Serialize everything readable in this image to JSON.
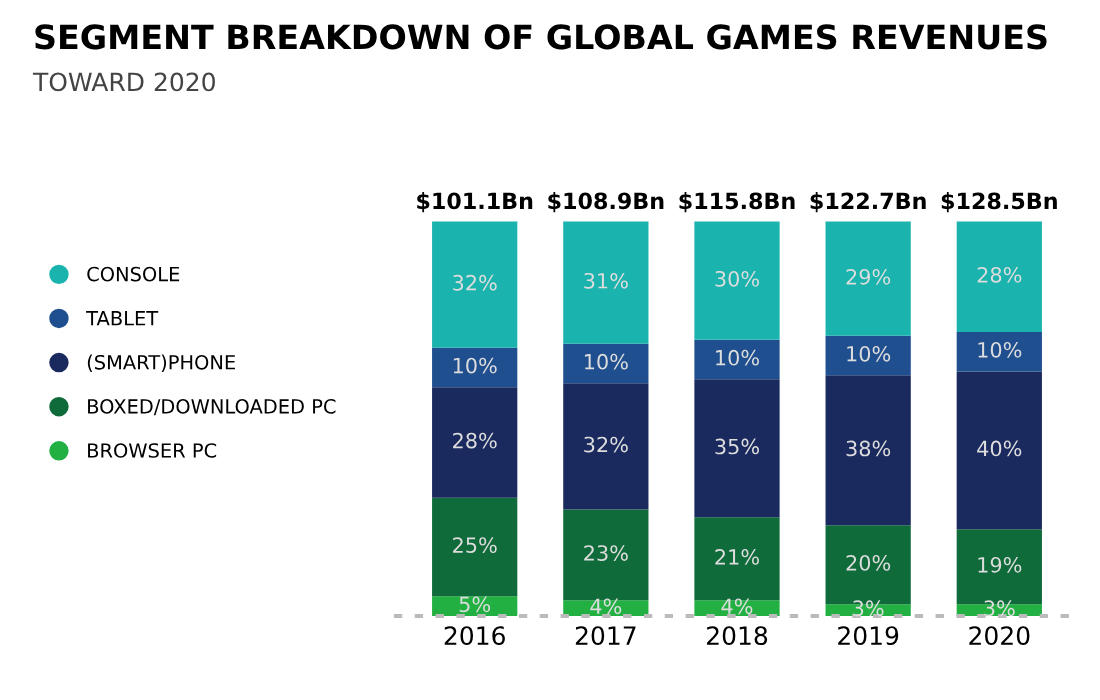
{
  "chart_data": {
    "type": "bar",
    "title": "SEGMENT BREAKDOWN OF GLOBAL GAMES REVENUES",
    "subtitle": "TOWARD 2020",
    "categories": [
      "2016",
      "2017",
      "2018",
      "2019",
      "2020"
    ],
    "stacked": true,
    "legend": "left",
    "grid": false,
    "tick_labels": "x",
    "series": [
      {
        "name": "BROWSER PC",
        "color": "#22b043",
        "values": [
          5,
          4,
          4,
          3,
          3
        ],
        "value_labels": [
          "5%",
          "4%",
          "4%",
          "3%",
          "3%"
        ]
      },
      {
        "name": "BOXED/DOWNLOADED PC",
        "color": "#0f6b3a",
        "values": [
          25,
          23,
          21,
          20,
          19
        ],
        "value_labels": [
          "25%",
          "23%",
          "21%",
          "20%",
          "19%"
        ]
      },
      {
        "name": "(SMART)PHONE",
        "color": "#1b2a5e",
        "values": [
          28,
          32,
          35,
          38,
          40
        ],
        "value_labels": [
          "28%",
          "32%",
          "35%",
          "38%",
          "40%"
        ]
      },
      {
        "name": "TABLET",
        "color": "#1f4f8f",
        "values": [
          10,
          10,
          10,
          10,
          10
        ],
        "value_labels": [
          "10%",
          "10%",
          "10%",
          "10%",
          "10%"
        ]
      },
      {
        "name": "CONSOLE",
        "color": "#1ab3ad",
        "values": [
          32,
          31,
          30,
          29,
          28
        ],
        "value_labels": [
          "32%",
          "31%",
          "30%",
          "29%",
          "28%"
        ]
      }
    ],
    "annotations": [
      "$101.1Bn",
      "$108.9Bn",
      "$115.8Bn",
      "$122.7Bn",
      "$128.5Bn"
    ]
  }
}
